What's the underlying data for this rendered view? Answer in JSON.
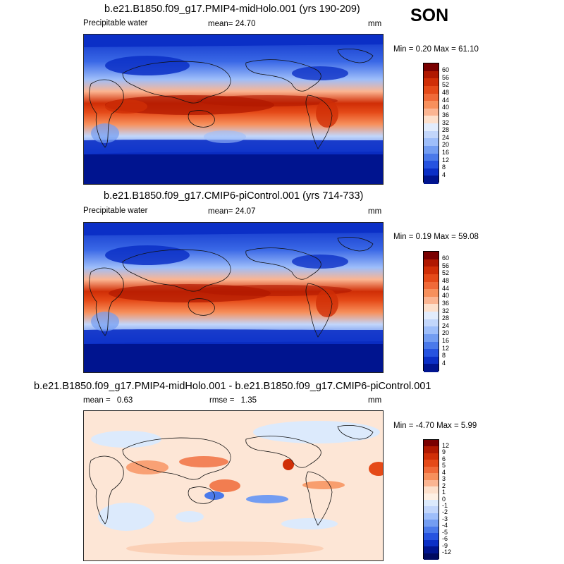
{
  "season": "SON",
  "panels": [
    {
      "title": "b.e21.B1850.f09_g17.PMIP4-midHolo.001 (yrs 190-209)",
      "left_label": "Precipitable water",
      "stat_label": "mean=",
      "stat_value": "24.70",
      "stat2_label": "",
      "stat2_value": "",
      "units": "mm",
      "min_label": "Min =",
      "min_value": "0.20",
      "max_label": "Max =",
      "max_value": "61.10",
      "colorbar": {
        "labels": [
          "60",
          "56",
          "52",
          "48",
          "44",
          "40",
          "36",
          "32",
          "28",
          "24",
          "20",
          "16",
          "12",
          "8",
          "4"
        ],
        "colors": [
          "#7a0000",
          "#b01800",
          "#d02e06",
          "#e54a18",
          "#f06a38",
          "#f7905c",
          "#fbb592",
          "#fde0cc",
          "#e2ecfc",
          "#c2d6fb",
          "#9ebefa",
          "#739df2",
          "#4a79ea",
          "#2653e0",
          "#0b2fc6",
          "#00148f"
        ]
      }
    },
    {
      "title": "b.e21.B1850.f09_g17.CMIP6-piControl.001 (yrs 714-733)",
      "left_label": "Precipitable water",
      "stat_label": "mean=",
      "stat_value": "24.07",
      "stat2_label": "",
      "stat2_value": "",
      "units": "mm",
      "min_label": "Min =",
      "min_value": "0.19",
      "max_label": "Max =",
      "max_value": "59.08",
      "colorbar": {
        "labels": [
          "60",
          "56",
          "52",
          "48",
          "44",
          "40",
          "36",
          "32",
          "28",
          "24",
          "20",
          "16",
          "12",
          "8",
          "4"
        ],
        "colors": [
          "#7a0000",
          "#b01800",
          "#d02e06",
          "#e54a18",
          "#f06a38",
          "#f7905c",
          "#fbb592",
          "#fde0cc",
          "#e2ecfc",
          "#c2d6fb",
          "#9ebefa",
          "#739df2",
          "#4a79ea",
          "#2653e0",
          "#0b2fc6",
          "#00148f"
        ]
      }
    },
    {
      "title": "b.e21.B1850.f09_g17.PMIP4-midHolo.001 - b.e21.B1850.f09_g17.CMIP6-piControl.001",
      "left_label": "",
      "stat_label": "mean =",
      "stat_value": "0.63",
      "stat2_label": "rmse =",
      "stat2_value": "1.35",
      "units": "mm",
      "min_label": "Min =",
      "min_value": "-4.70",
      "max_label": "Max =",
      "max_value": "5.99",
      "colorbar": {
        "labels": [
          "12",
          "9",
          "6",
          "5",
          "4",
          "3",
          "2",
          "1",
          "0",
          "-1",
          "-2",
          "-3",
          "-4",
          "-5",
          "-6",
          "-9",
          "-12"
        ],
        "colors": [
          "#7a0000",
          "#b01800",
          "#d02e06",
          "#e54a18",
          "#f06a38",
          "#f7905c",
          "#fbb592",
          "#fde0cc",
          "#fef0e4",
          "#dceafc",
          "#c2d6fb",
          "#9ebefa",
          "#739df2",
          "#4a79ea",
          "#2653e0",
          "#0b2fc6",
          "#00148f",
          "#000a60"
        ]
      }
    }
  ]
}
